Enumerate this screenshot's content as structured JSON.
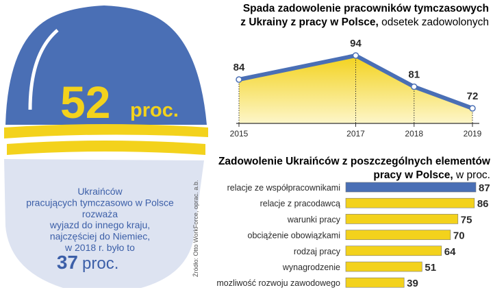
{
  "colors": {
    "blue": "#4a6fb5",
    "yellow": "#f3d21c",
    "yellow_light": "#fbf1b0",
    "face": "#dde3f1",
    "text": "#2a2a2a",
    "blue_text": "#3c5fa8",
    "helmet_num": "#f3d21c"
  },
  "helmet": {
    "value": "52",
    "unit": "proc.",
    "text_lines": [
      "Ukraińców",
      "pracujących tymczasowo w Polsce",
      "rozważa",
      "wyjazd do innego kraju,",
      "najczęściej do Niemiec,",
      "w 2018 r. było to"
    ],
    "bottom_value": "37",
    "bottom_unit": "proc."
  },
  "source": "Źródło: Otto WorkForce, oprac. a.b.",
  "chart_data": [
    {
      "type": "area",
      "title_bold_1": "Spada zadowolenie pracowników tymczasowych",
      "title_bold_2": "z Ukrainy z pracy w Polsce,",
      "title_light": "odsetek zadowolonych",
      "x": [
        "2015",
        "2017",
        "2018",
        "2019"
      ],
      "x_pos": [
        2015,
        2017,
        2018,
        2019
      ],
      "values": [
        84,
        94,
        81,
        72
      ],
      "xlim": [
        2015,
        2019
      ],
      "ylim": [
        60,
        100
      ]
    },
    {
      "type": "bar",
      "orientation": "horizontal",
      "title_bold_1": "Zadowolenie Ukraińców z poszczególnych elementów",
      "title_bold_2": "pracy w Polsce,",
      "title_light": "w proc.",
      "categories": [
        "relacje ze współpracownikami",
        "relacje z pracodawcą",
        "warunki pracy",
        "obciążenie obowiązkami",
        "rodzaj pracy",
        "wynagrodzenie",
        "mozliwość rozwoju zawodowego"
      ],
      "values": [
        87,
        86,
        75,
        70,
        64,
        51,
        39
      ],
      "highlight_index": 0,
      "xlim": [
        0,
        87
      ]
    }
  ]
}
